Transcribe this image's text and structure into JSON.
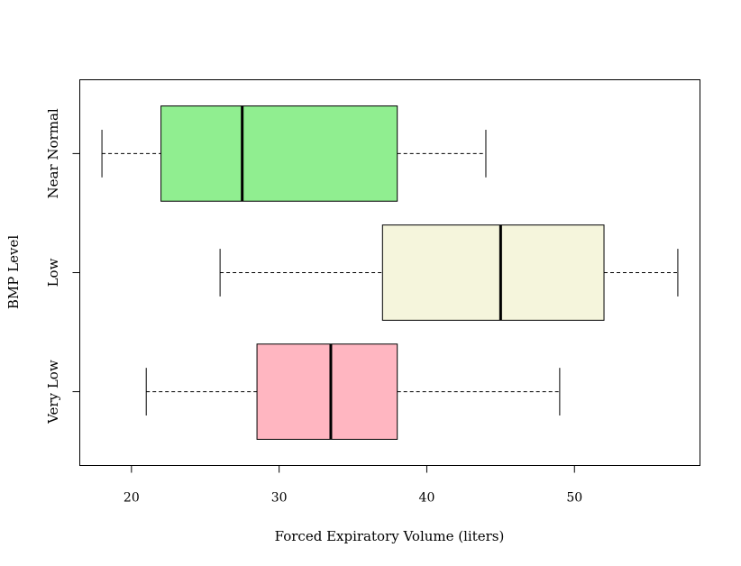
{
  "chart_data": {
    "type": "boxplot",
    "orientation": "horizontal",
    "title": "",
    "xlabel": "Forced Expiratory Volume (liters)",
    "ylabel": "BMP Level",
    "xlim": [
      16.5,
      58.5
    ],
    "xticks": [
      20,
      30,
      40,
      50
    ],
    "grid": false,
    "categories": [
      "Very Low",
      "Low",
      "Near Normal"
    ],
    "boxes": [
      {
        "category": "Very Low",
        "whisker_low": 21,
        "q1": 28.5,
        "median": 33.5,
        "q3": 38,
        "whisker_high": 49,
        "color": "#ffb6c1"
      },
      {
        "category": "Low",
        "whisker_low": 26,
        "q1": 37,
        "median": 45,
        "q3": 52,
        "whisker_high": 57,
        "color": "#f5f5dc"
      },
      {
        "category": "Near Normal",
        "whisker_low": 18,
        "q1": 22,
        "median": 27.5,
        "q3": 38,
        "whisker_high": 44,
        "color": "#90ee90"
      }
    ]
  }
}
